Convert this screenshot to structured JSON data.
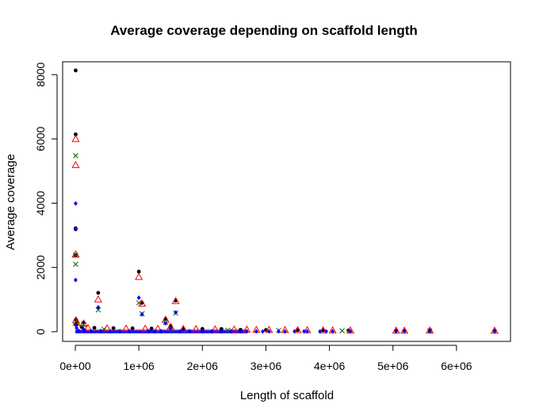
{
  "chart_data": {
    "type": "scatter",
    "title": "Average coverage depending on scaffold length",
    "xlabel": "Length of scaffold",
    "ylabel": "Average coverage",
    "xlim": [
      -200000,
      6850000
    ],
    "ylim": [
      -300,
      8400
    ],
    "x_ticks": [
      0,
      1000000,
      2000000,
      3000000,
      4000000,
      5000000,
      6000000
    ],
    "x_tick_labels": [
      "0e+00",
      "1e+06",
      "2e+06",
      "3e+06",
      "4e+06",
      "5e+06",
      "6e+06"
    ],
    "y_ticks": [
      0,
      2000,
      4000,
      6000,
      8000
    ],
    "y_tick_labels": [
      "0",
      "2000",
      "4000",
      "6000",
      "8000"
    ],
    "grid": false,
    "legend": "none",
    "series": [
      {
        "marker": "dot",
        "color": "#000000",
        "points": [
          [
            5000,
            8130
          ],
          [
            5000,
            6140
          ],
          [
            5000,
            3220
          ],
          [
            5000,
            3190
          ],
          [
            5000,
            2380
          ],
          [
            10000,
            380
          ],
          [
            20000,
            300
          ],
          [
            15000,
            220
          ],
          [
            130000,
            290
          ],
          [
            100000,
            150
          ],
          [
            360000,
            1210
          ],
          [
            1000000,
            1870
          ],
          [
            1050000,
            900
          ],
          [
            1420000,
            400
          ],
          [
            1500000,
            180
          ],
          [
            1580000,
            970
          ],
          [
            300000,
            120
          ],
          [
            600000,
            110
          ],
          [
            900000,
            105
          ],
          [
            1200000,
            100
          ],
          [
            1700000,
            95
          ],
          [
            2000000,
            90
          ],
          [
            2300000,
            85
          ],
          [
            2600000,
            60
          ],
          [
            3000000,
            55
          ],
          [
            3500000,
            50
          ],
          [
            3900000,
            45
          ],
          [
            4300000,
            40
          ],
          [
            5050000,
            35
          ],
          [
            5180000,
            30
          ],
          [
            5580000,
            40
          ],
          [
            6600000,
            30
          ]
        ]
      },
      {
        "marker": "triangle",
        "color": "#ff0000",
        "points": [
          [
            5000,
            5990
          ],
          [
            5000,
            5180
          ],
          [
            5000,
            2400
          ],
          [
            10000,
            350
          ],
          [
            20000,
            270
          ],
          [
            130000,
            250
          ],
          [
            360000,
            1000
          ],
          [
            1000000,
            1700
          ],
          [
            1050000,
            870
          ],
          [
            1420000,
            370
          ],
          [
            1500000,
            150
          ],
          [
            1580000,
            950
          ],
          [
            200000,
            110
          ],
          [
            500000,
            100
          ],
          [
            800000,
            95
          ],
          [
            1100000,
            90
          ],
          [
            1300000,
            85
          ],
          [
            1700000,
            80
          ],
          [
            1900000,
            75
          ],
          [
            2200000,
            70
          ],
          [
            2500000,
            65
          ],
          [
            2700000,
            60
          ],
          [
            2850000,
            55
          ],
          [
            3050000,
            50
          ],
          [
            3300000,
            48
          ],
          [
            3500000,
            45
          ],
          [
            3650000,
            42
          ],
          [
            3900000,
            40
          ],
          [
            4050000,
            38
          ],
          [
            4330000,
            35
          ],
          [
            5050000,
            32
          ],
          [
            5180000,
            30
          ],
          [
            5580000,
            35
          ],
          [
            6600000,
            30
          ]
        ]
      },
      {
        "marker": "cross",
        "color": "#006400",
        "points": [
          [
            5000,
            5480
          ],
          [
            5000,
            2380
          ],
          [
            5000,
            2100
          ],
          [
            10000,
            300
          ],
          [
            130000,
            220
          ],
          [
            360000,
            680
          ],
          [
            1000000,
            900
          ],
          [
            1050000,
            560
          ],
          [
            1420000,
            290
          ],
          [
            1580000,
            580
          ],
          [
            450000,
            80
          ],
          [
            1500000,
            70
          ],
          [
            2400000,
            50
          ],
          [
            3200000,
            40
          ],
          [
            4200000,
            30
          ],
          [
            5580000,
            25
          ]
        ]
      },
      {
        "marker": "diamond",
        "color": "#0000ff",
        "points": [
          [
            5000,
            3990
          ],
          [
            5000,
            3210
          ],
          [
            5000,
            1610
          ],
          [
            10000,
            200
          ],
          [
            20000,
            120
          ],
          [
            130000,
            80
          ],
          [
            360000,
            760
          ],
          [
            1000000,
            1060
          ],
          [
            1050000,
            540
          ],
          [
            1420000,
            260
          ],
          [
            1500000,
            100
          ],
          [
            1580000,
            600
          ],
          [
            50000,
            30
          ],
          [
            150000,
            20
          ],
          [
            250000,
            15
          ],
          [
            400000,
            20
          ],
          [
            550000,
            10
          ],
          [
            700000,
            15
          ],
          [
            850000,
            10
          ],
          [
            1150000,
            20
          ],
          [
            1250000,
            10
          ],
          [
            1350000,
            15
          ],
          [
            1650000,
            10
          ],
          [
            1800000,
            15
          ],
          [
            2000000,
            10
          ],
          [
            2150000,
            12
          ],
          [
            2300000,
            10
          ],
          [
            2450000,
            15
          ],
          [
            2600000,
            10
          ],
          [
            2700000,
            12
          ],
          [
            2850000,
            10
          ],
          [
            2950000,
            8
          ],
          [
            3050000,
            10
          ],
          [
            3200000,
            12
          ],
          [
            3300000,
            8
          ],
          [
            3450000,
            10
          ],
          [
            3600000,
            12
          ],
          [
            3650000,
            10
          ],
          [
            3850000,
            8
          ],
          [
            3950000,
            10
          ],
          [
            4050000,
            12
          ],
          [
            4330000,
            10
          ],
          [
            5050000,
            10
          ],
          [
            5180000,
            12
          ],
          [
            5580000,
            10
          ],
          [
            6600000,
            12
          ]
        ]
      }
    ],
    "dense_band": {
      "x_range": [
        0,
        2700000
      ],
      "y_range": [
        0,
        80
      ],
      "colors": [
        "#000000",
        "#ff0000",
        "#006400",
        "#0000ff"
      ]
    }
  }
}
